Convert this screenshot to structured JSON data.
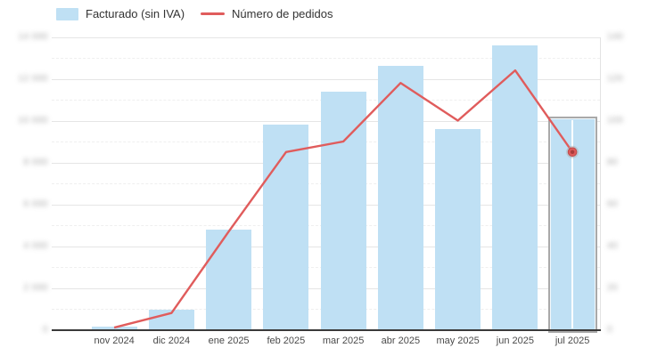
{
  "legend": {
    "items": [
      {
        "label": "Facturado (sin IVA)",
        "swatch": "bar",
        "color": "#BFE0F4"
      },
      {
        "label": "Número de pedidos",
        "swatch": "line",
        "color": "#E05C5C"
      }
    ]
  },
  "chart_data": {
    "type": "bar",
    "subtype": "bar + line combo, dual y-axes",
    "title": "",
    "categories": [
      "nov 2024",
      "dic 2024",
      "ene 2025",
      "feb 2025",
      "mar 2025",
      "abr 2025",
      "may 2025",
      "jun 2025",
      "jul 2025"
    ],
    "series": [
      {
        "name": "Facturado (sin IVA)",
        "type": "bar",
        "axis": "left",
        "color": "#BFE0F4",
        "values": [
          150,
          950,
          4800,
          9800,
          11400,
          12600,
          9600,
          13600,
          10100
        ]
      },
      {
        "name": "Número de pedidos",
        "type": "line",
        "axis": "right",
        "color": "#E05C5C",
        "values": [
          1,
          8,
          47,
          85,
          90,
          118,
          100,
          124,
          85
        ]
      }
    ],
    "left_axis": {
      "min": 0,
      "max": 14000,
      "step": 2000,
      "labels_blurred": true,
      "tick_labels": [
        "0",
        "2 000",
        "4 000",
        "6 000",
        "8 000",
        "10 000",
        "12 000",
        "14 000"
      ]
    },
    "right_axis": {
      "min": 0,
      "max": 140,
      "step": 20,
      "labels_blurred": true,
      "tick_labels": [
        "0",
        "20",
        "40",
        "60",
        "80",
        "100",
        "120",
        "140"
      ]
    },
    "grid": "horizontal, solid major lines with dashed minor lines between",
    "legend_position": "top-left",
    "highlight": {
      "category": "jul 2025",
      "series": "Número de pedidos",
      "marker": "red point with halo, gray column outline, white vertical crosshair"
    },
    "note": "Both y-axis tick label numerals are blurred (redacted) in the source image; series values are estimated from gridline positions."
  }
}
